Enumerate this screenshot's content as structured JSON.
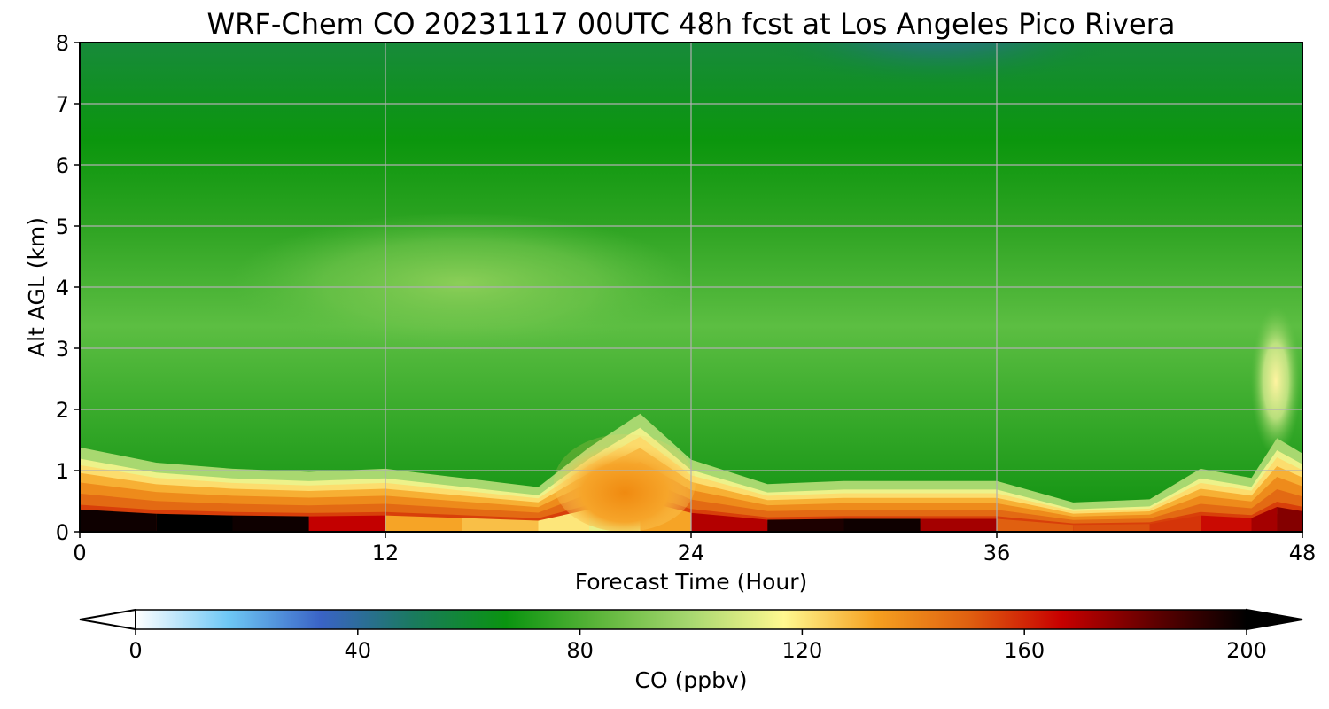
{
  "chart_data": {
    "type": "heatmap",
    "title": "WRF-Chem CO  20231117 00UTC 48h fcst at Los Angeles Pico Rivera",
    "xlabel": "Forecast Time (Hour)",
    "ylabel": "Alt AGL (km)",
    "xlim": [
      0,
      48
    ],
    "ylim": [
      0,
      8
    ],
    "x_ticks": [
      "0",
      "12",
      "24",
      "36",
      "48"
    ],
    "y_ticks": [
      "0",
      "1",
      "2",
      "3",
      "4",
      "5",
      "6",
      "7",
      "8"
    ],
    "grid": true,
    "colorbar": {
      "label": "CO  (ppbv)",
      "range": [
        0,
        200
      ],
      "ticks": [
        "0",
        "40",
        "80",
        "120",
        "160",
        "200"
      ],
      "extend": "both",
      "placement": "bottom",
      "colors": [
        "#ffffff",
        "#6ec8f5",
        "#3a63c6",
        "#1a7a5e",
        "#0a9410",
        "#5cb53a",
        "#a8d870",
        "#fff890",
        "#f5a020",
        "#e06010",
        "#c80000",
        "#600000",
        "#000000"
      ]
    },
    "hours": [
      0,
      3,
      6,
      9,
      12,
      15,
      18,
      20,
      22,
      24,
      27,
      30,
      33,
      36,
      39,
      42,
      44,
      46,
      47,
      48
    ],
    "boundary_layer_top_km": [
      1.3,
      1.05,
      0.95,
      0.9,
      0.95,
      0.8,
      0.65,
      1.3,
      1.85,
      1.1,
      0.7,
      0.75,
      0.75,
      0.75,
      0.4,
      0.45,
      0.95,
      0.8,
      1.45,
      1.2
    ],
    "surface_co_ppbv": [
      195,
      200,
      200,
      195,
      140,
      125,
      130,
      110,
      115,
      150,
      190,
      200,
      195,
      150,
      150,
      155,
      160,
      170,
      175,
      180
    ],
    "upper_level_co_ppbv": {
      "min": 60,
      "min_location": "around hour 34, 7.5–8 km",
      "max": 92,
      "max_location": "around hour 15–20, 3.5–4.5 km"
    }
  }
}
